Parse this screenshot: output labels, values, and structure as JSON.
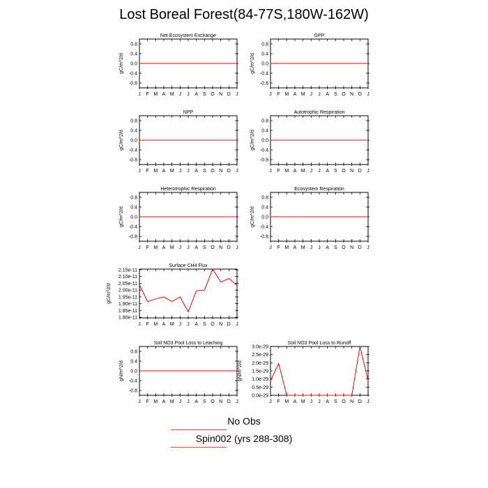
{
  "title": "Lost Boreal Forest(84-77S,180W-162W)",
  "months": [
    "J",
    "F",
    "M",
    "A",
    "M",
    "J",
    "J",
    "A",
    "S",
    "O",
    "N",
    "D",
    "J"
  ],
  "legend": {
    "obs_label": "No Obs",
    "model_label": "Spin002 (yrs 288-308)",
    "line_color": "#ff0000"
  },
  "chart_data": [
    {
      "type": "line",
      "title": "Net Ecosystem Exchange",
      "ylabel": "gC/m^2/d",
      "ylim": [
        -1.0,
        1.0
      ],
      "yticks": [
        "0.8",
        "0.4",
        "0.0",
        "-0.4",
        "-0.8"
      ],
      "ytick_values": [
        0.8,
        0.4,
        0.0,
        -0.4,
        -0.8
      ],
      "x": [
        1,
        2,
        3,
        4,
        5,
        6,
        7,
        8,
        9,
        10,
        11,
        12,
        13
      ],
      "values": [
        0,
        0,
        0,
        0,
        0,
        0,
        0,
        0,
        0,
        0,
        0,
        0,
        0
      ]
    },
    {
      "type": "line",
      "title": "GPP",
      "ylabel": "gC/m^2/d",
      "ylim": [
        -1.0,
        1.0
      ],
      "yticks": [
        "0.8",
        "0.4",
        "0.0",
        "-0.4",
        "-0.8"
      ],
      "ytick_values": [
        0.8,
        0.4,
        0.0,
        -0.4,
        -0.8
      ],
      "x": [
        1,
        2,
        3,
        4,
        5,
        6,
        7,
        8,
        9,
        10,
        11,
        12,
        13
      ],
      "values": [
        0,
        0,
        0,
        0,
        0,
        0,
        0,
        0,
        0,
        0,
        0,
        0,
        0
      ]
    },
    {
      "type": "line",
      "title": "NPP",
      "ylabel": "gC/m^2/d",
      "ylim": [
        -1.0,
        1.0
      ],
      "yticks": [
        "0.8",
        "0.4",
        "0.0",
        "-0.4",
        "-0.8"
      ],
      "ytick_values": [
        0.8,
        0.4,
        0.0,
        -0.4,
        -0.8
      ],
      "x": [
        1,
        2,
        3,
        4,
        5,
        6,
        7,
        8,
        9,
        10,
        11,
        12,
        13
      ],
      "values": [
        0,
        0,
        0,
        0,
        0,
        0,
        0,
        0,
        0,
        0,
        0,
        0,
        0
      ]
    },
    {
      "type": "line",
      "title": "Autotrophic Respiration",
      "ylabel": "gC/m^2/d",
      "ylim": [
        -1.0,
        1.0
      ],
      "yticks": [
        "0.8",
        "0.4",
        "0.0",
        "-0.4",
        "-0.8"
      ],
      "ytick_values": [
        0.8,
        0.4,
        0.0,
        -0.4,
        -0.8
      ],
      "x": [
        1,
        2,
        3,
        4,
        5,
        6,
        7,
        8,
        9,
        10,
        11,
        12,
        13
      ],
      "values": [
        0,
        0,
        0,
        0,
        0,
        0,
        0,
        0,
        0,
        0,
        0,
        0,
        0
      ]
    },
    {
      "type": "line",
      "title": "Heterotrophic Respiration",
      "ylabel": "gC/m^2/d",
      "ylim": [
        -1.0,
        1.0
      ],
      "yticks": [
        "0.8",
        "0.4",
        "0.0",
        "-0.4",
        "-0.8"
      ],
      "ytick_values": [
        0.8,
        0.4,
        0.0,
        -0.4,
        -0.8
      ],
      "x": [
        1,
        2,
        3,
        4,
        5,
        6,
        7,
        8,
        9,
        10,
        11,
        12,
        13
      ],
      "values": [
        0,
        0,
        0,
        0,
        0,
        0,
        0,
        0,
        0,
        0,
        0,
        0,
        0
      ]
    },
    {
      "type": "line",
      "title": "Ecosystem Respiration",
      "ylabel": "gC/m^2/d",
      "ylim": [
        -1.0,
        1.0
      ],
      "yticks": [
        "0.8",
        "0.4",
        "0.0",
        "-0.4",
        "-0.8"
      ],
      "ytick_values": [
        0.8,
        0.4,
        0.0,
        -0.4,
        -0.8
      ],
      "x": [
        1,
        2,
        3,
        4,
        5,
        6,
        7,
        8,
        9,
        10,
        11,
        12,
        13
      ],
      "values": [
        0,
        0,
        0,
        0,
        0,
        0,
        0,
        0,
        0,
        0,
        0,
        0,
        0
      ]
    },
    {
      "type": "line",
      "title": "Surface CH4 Flux",
      "ylabel": "gC/m^2/d",
      "ylim": [
        1.795e-11,
        2.155e-11
      ],
      "yticks": [
        "2.15e-11",
        "2.10e-11",
        "2.05e-11",
        "2.00e-11",
        "1.95e-11",
        "1.90e-11",
        "1.85e-11",
        "1.80e-11"
      ],
      "ytick_values": [
        2.15e-11,
        2.1e-11,
        2.05e-11,
        2e-11,
        1.95e-11,
        1.9e-11,
        1.85e-11,
        1.8e-11
      ],
      "x": [
        1,
        2,
        3,
        4,
        5,
        6,
        7,
        8,
        9,
        10,
        11,
        12,
        13
      ],
      "values": [
        2.04e-11,
        1.915e-11,
        1.935e-11,
        1.95e-11,
        1.915e-11,
        1.95e-11,
        1.84e-11,
        1.995e-11,
        2e-11,
        2.155e-11,
        2.06e-11,
        2.085e-11,
        2.035e-11
      ]
    },
    {
      "type": "line",
      "title": "Soil NO3 Pool Loss to Leaching",
      "ylabel": "gN/m^2/d",
      "ylim": [
        -1.0,
        1.0
      ],
      "yticks": [
        "0.8",
        "0.4",
        "0.0",
        "-0.4",
        "-0.8"
      ],
      "ytick_values": [
        0.8,
        0.4,
        0.0,
        -0.4,
        -0.8
      ],
      "x": [
        1,
        2,
        3,
        4,
        5,
        6,
        7,
        8,
        9,
        10,
        11,
        12,
        13
      ],
      "values": [
        0,
        0,
        0,
        0,
        0,
        0,
        0,
        0,
        0,
        0,
        0,
        0,
        0
      ]
    },
    {
      "type": "line",
      "title": "Soil NO3 Pool Loss to Runoff",
      "ylabel": "gN/m^2/d",
      "ylim": [
        0.0,
        3e-29
      ],
      "yticks": [
        "3.0e-29",
        "2.5e-29",
        "2.0e-29",
        "1.5e-29",
        "1.0e-29",
        "0.5e-29",
        "0.0e-29"
      ],
      "ytick_values": [
        3e-29,
        2.5e-29,
        2e-29,
        1.5e-29,
        1e-29,
        5e-30,
        0.0
      ],
      "x": [
        1,
        2,
        3,
        4,
        5,
        6,
        7,
        8,
        9,
        10,
        11,
        12,
        13
      ],
      "values": [
        9e-30,
        1.95e-29,
        0,
        0,
        0,
        0,
        0,
        0,
        0,
        0,
        0,
        3e-29,
        9e-30
      ]
    }
  ]
}
